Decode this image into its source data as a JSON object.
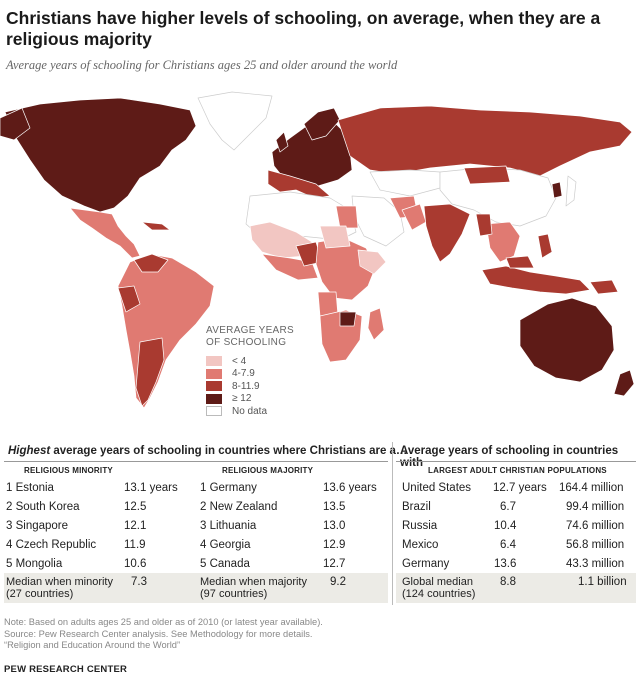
{
  "title": "Christians have higher levels of schooling, on average, when they are a religious majority",
  "subtitle": "Average years of schooling for Christians ages 25 and older around the world",
  "legend": {
    "title_line1": "AVERAGE YEARS",
    "title_line2": "OF SCHOOLING",
    "items": [
      {
        "label": "< 4",
        "color": "#f2c6c2"
      },
      {
        "label": "4-7.9",
        "color": "#e07a72"
      },
      {
        "label": "8-11.9",
        "color": "#a93a30"
      },
      {
        "label": "≥ 12",
        "color": "#5e1b17"
      },
      {
        "label": "No data",
        "color": "#ffffff"
      }
    ]
  },
  "tables": {
    "left_heading_italic": "Highest",
    "left_heading_rest": " average years of schooling in countries where Christians are a…",
    "minority_label": "RELIGIOUS MINORITY",
    "majority_label": "RELIGIOUS MAJORITY",
    "minority_rows": [
      {
        "rank": "1 Estonia",
        "value": "13.1 years"
      },
      {
        "rank": "2 South Korea",
        "value": "12.5"
      },
      {
        "rank": "3 Singapore",
        "value": "12.1"
      },
      {
        "rank": "4 Czech Republic",
        "value": "11.9"
      },
      {
        "rank": "5 Mongolia",
        "value": "10.6"
      }
    ],
    "majority_rows": [
      {
        "rank": "1 Germany",
        "value": "13.6 years"
      },
      {
        "rank": "2 New Zealand",
        "value": "13.5"
      },
      {
        "rank": "3 Lithuania",
        "value": "13.0"
      },
      {
        "rank": "4 Georgia",
        "value": "12.9"
      },
      {
        "rank": "5 Canada",
        "value": "12.7"
      }
    ],
    "minority_median_l1": "Median when minority",
    "minority_median_l2": "(27 countries)",
    "minority_median_value": "7.3",
    "majority_median_l1": "Median when majority",
    "majority_median_l2": "(97 countries)",
    "majority_median_value": "9.2",
    "right_heading": "Average years of schooling in countries with",
    "right_subheading": "LARGEST ADULT CHRISTIAN POPULATIONS",
    "largest_rows": [
      {
        "country": "United States",
        "years": "12.7 years",
        "pop": "164.4 million"
      },
      {
        "country": "Brazil",
        "years": "6.7",
        "pop": "99.4 million"
      },
      {
        "country": "Russia",
        "years": "10.4",
        "pop": "74.6 million"
      },
      {
        "country": "Mexico",
        "years": "6.4",
        "pop": "56.8 million"
      },
      {
        "country": "Germany",
        "years": "13.6",
        "pop": "43.3 million"
      }
    ],
    "global_l1": "Global median",
    "global_l2": "(124 countries)",
    "global_years": "8.8",
    "global_pop": "1.1 billion"
  },
  "notes": {
    "note": "Note: Based on adults ages 25 and older as of 2010 (or latest year available).",
    "source": "Source: Pew Research Center analysis. See Methodology for more details.",
    "report": "“Religion and Education Around the World”",
    "org": "PEW RESEARCH CENTER"
  },
  "chart_data": {
    "type": "table",
    "title": "Christians have higher levels of schooling, on average, when they are a religious majority",
    "map_legend_bins": [
      "< 4",
      "4-7.9",
      "8-11.9",
      "≥ 12",
      "No data"
    ],
    "minority": {
      "countries": [
        "Estonia",
        "South Korea",
        "Singapore",
        "Czech Republic",
        "Mongolia"
      ],
      "years": [
        13.1,
        12.5,
        12.1,
        11.9,
        10.6
      ],
      "median": 7.3,
      "n": 27
    },
    "majority": {
      "countries": [
        "Germany",
        "New Zealand",
        "Lithuania",
        "Georgia",
        "Canada"
      ],
      "years": [
        13.6,
        13.5,
        13.0,
        12.9,
        12.7
      ],
      "median": 9.2,
      "n": 97
    },
    "largest_populations": {
      "countries": [
        "United States",
        "Brazil",
        "Russia",
        "Mexico",
        "Germany"
      ],
      "years": [
        12.7,
        6.7,
        10.4,
        6.4,
        13.6
      ],
      "population_millions": [
        164.4,
        99.4,
        74.6,
        56.8,
        43.3
      ],
      "global_median_years": 8.8,
      "global_population": "1.1 billion",
      "n": 124
    }
  }
}
